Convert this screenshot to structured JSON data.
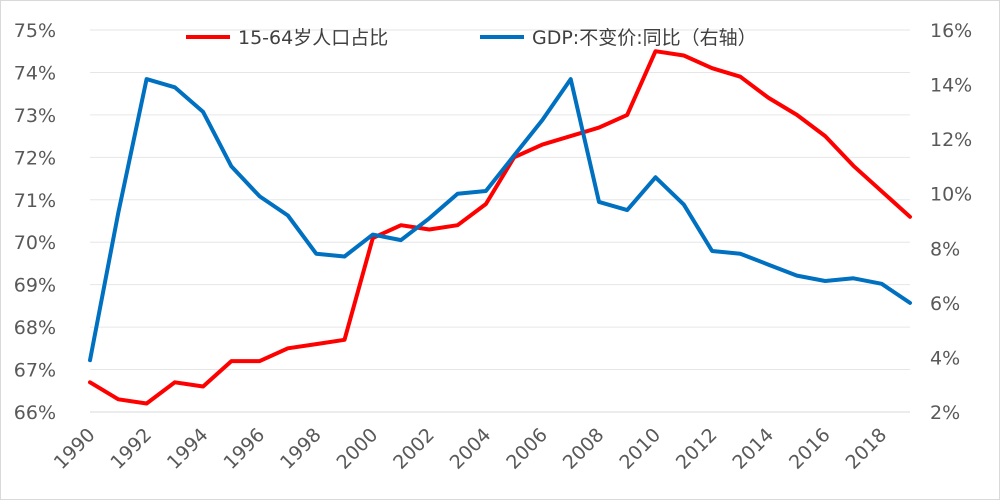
{
  "chart_data": {
    "type": "line",
    "x": [
      1990,
      1991,
      1992,
      1993,
      1994,
      1995,
      1996,
      1997,
      1998,
      1999,
      2000,
      2001,
      2002,
      2003,
      2004,
      2005,
      2006,
      2007,
      2008,
      2009,
      2010,
      2011,
      2012,
      2013,
      2014,
      2015,
      2016,
      2017,
      2018,
      2019
    ],
    "x_tick_labels": [
      "1990",
      "1992",
      "1994",
      "1996",
      "1998",
      "2000",
      "2002",
      "2004",
      "2006",
      "2008",
      "2010",
      "2012",
      "2014",
      "2016",
      "2018"
    ],
    "series": [
      {
        "name": "15-64岁人口占比",
        "axis": "left",
        "color": "#ff0000",
        "values": [
          66.7,
          66.3,
          66.2,
          66.7,
          66.6,
          67.2,
          67.2,
          67.5,
          67.6,
          67.7,
          70.1,
          70.4,
          70.3,
          70.4,
          70.9,
          72.0,
          72.3,
          72.5,
          72.7,
          73.0,
          74.5,
          74.4,
          74.1,
          73.9,
          73.4,
          73.0,
          72.5,
          71.8,
          71.2,
          70.6
        ]
      },
      {
        "name": "GDP:不变价:同比（右轴）",
        "axis": "right",
        "color": "#0070c0",
        "values": [
          3.9,
          9.3,
          14.2,
          13.9,
          13.0,
          11.0,
          9.9,
          9.2,
          7.8,
          7.7,
          8.5,
          8.3,
          9.1,
          10.0,
          10.1,
          11.4,
          12.7,
          14.2,
          9.7,
          9.4,
          10.6,
          9.6,
          7.9,
          7.8,
          7.4,
          7.0,
          6.8,
          6.9,
          6.7,
          6.0
        ]
      }
    ],
    "y_left": {
      "ylim": [
        66,
        75
      ],
      "ticks": [
        "66%",
        "67%",
        "68%",
        "69%",
        "70%",
        "71%",
        "72%",
        "73%",
        "74%",
        "75%"
      ]
    },
    "y_right": {
      "ylim": [
        2,
        16
      ],
      "ticks": [
        "2%",
        "4%",
        "6%",
        "8%",
        "10%",
        "12%",
        "14%",
        "16%"
      ]
    },
    "grid": "horizontal",
    "legend_position": "top"
  }
}
